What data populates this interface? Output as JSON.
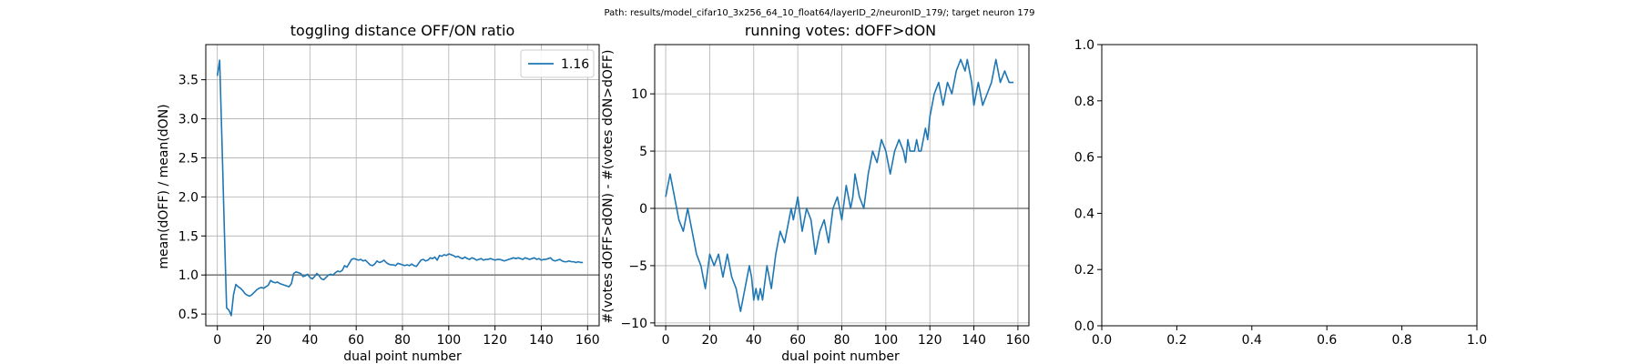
{
  "figure": {
    "suptitle": "Path: results/model_cifar10_3x256_64_10_float64/layerID_2/neuronID_179/; target neuron 179"
  },
  "chart_data": [
    {
      "type": "line",
      "title": "toggling distance OFF/ON ratio",
      "xlabel": "dual point number",
      "ylabel": "mean(dOFF) / mean(dON)",
      "xlim": [
        -5,
        165
      ],
      "ylim": [
        0.35,
        3.95
      ],
      "xticks": [
        0,
        20,
        40,
        60,
        80,
        100,
        120,
        140,
        160
      ],
      "yticks": [
        0.5,
        1.0,
        1.5,
        2.0,
        2.5,
        3.0,
        3.5
      ],
      "xtick_labels": [
        "0",
        "20",
        "40",
        "60",
        "80",
        "100",
        "120",
        "140",
        "160"
      ],
      "ytick_labels": [
        "0.5",
        "1.0",
        "1.5",
        "2.0",
        "2.5",
        "3.0",
        "3.5"
      ],
      "grid": true,
      "hline": 1.0,
      "legend": {
        "position": "top-right",
        "entries": [
          "1.16"
        ]
      },
      "series": [
        {
          "name": "1.16",
          "color": "#1f77b4",
          "x": [
            0,
            1,
            2,
            3,
            4,
            5,
            6,
            7,
            8,
            9,
            10,
            11,
            12,
            13,
            14,
            15,
            16,
            17,
            18,
            19,
            20,
            21,
            22,
            23,
            24,
            25,
            26,
            27,
            28,
            29,
            30,
            31,
            32,
            33,
            34,
            35,
            36,
            37,
            38,
            39,
            40,
            41,
            42,
            43,
            44,
            45,
            46,
            47,
            48,
            49,
            50,
            51,
            52,
            53,
            54,
            55,
            56,
            57,
            58,
            59,
            60,
            61,
            62,
            63,
            64,
            65,
            66,
            67,
            68,
            69,
            70,
            71,
            72,
            73,
            74,
            75,
            76,
            77,
            78,
            79,
            80,
            81,
            82,
            83,
            84,
            85,
            86,
            87,
            88,
            89,
            90,
            91,
            92,
            93,
            94,
            95,
            96,
            97,
            98,
            99,
            100,
            101,
            102,
            103,
            104,
            105,
            106,
            107,
            108,
            109,
            110,
            111,
            112,
            113,
            114,
            115,
            116,
            117,
            118,
            119,
            120,
            121,
            122,
            123,
            124,
            125,
            126,
            127,
            128,
            129,
            130,
            131,
            132,
            133,
            134,
            135,
            136,
            137,
            138,
            139,
            140,
            141,
            142,
            143,
            144,
            145,
            146,
            147,
            148,
            149,
            150,
            151,
            152,
            153,
            154,
            155,
            156,
            157,
            158
          ],
          "y": [
            3.55,
            3.75,
            2.7,
            1.6,
            0.58,
            0.55,
            0.48,
            0.75,
            0.88,
            0.85,
            0.83,
            0.8,
            0.76,
            0.74,
            0.73,
            0.75,
            0.78,
            0.81,
            0.83,
            0.84,
            0.83,
            0.85,
            0.87,
            0.93,
            0.91,
            0.9,
            0.91,
            0.89,
            0.88,
            0.87,
            0.86,
            0.85,
            0.89,
            1.02,
            1.04,
            1.03,
            1.02,
            0.98,
            0.99,
            1.01,
            0.97,
            0.95,
            0.98,
            1.02,
            0.99,
            0.95,
            0.94,
            0.97,
            1.0,
            1.01,
            1.0,
            1.03,
            1.05,
            1.04,
            1.06,
            1.12,
            1.1,
            1.15,
            1.2,
            1.21,
            1.2,
            1.19,
            1.2,
            1.18,
            1.19,
            1.16,
            1.13,
            1.12,
            1.14,
            1.18,
            1.16,
            1.17,
            1.19,
            1.16,
            1.14,
            1.13,
            1.13,
            1.12,
            1.15,
            1.14,
            1.13,
            1.12,
            1.13,
            1.12,
            1.14,
            1.12,
            1.11,
            1.15,
            1.19,
            1.2,
            1.18,
            1.19,
            1.22,
            1.21,
            1.23,
            1.19,
            1.25,
            1.24,
            1.26,
            1.25,
            1.27,
            1.26,
            1.25,
            1.23,
            1.24,
            1.22,
            1.21,
            1.23,
            1.21,
            1.2,
            1.22,
            1.21,
            1.19,
            1.2,
            1.21,
            1.19,
            1.2,
            1.2,
            1.21,
            1.2,
            1.19,
            1.2,
            1.2,
            1.19,
            1.18,
            1.19,
            1.2,
            1.21,
            1.22,
            1.21,
            1.22,
            1.21,
            1.2,
            1.22,
            1.21,
            1.2,
            1.21,
            1.22,
            1.2,
            1.21,
            1.19,
            1.2,
            1.2,
            1.21,
            1.22,
            1.19,
            1.18,
            1.19,
            1.2,
            1.18,
            1.17,
            1.17,
            1.18,
            1.17,
            1.17,
            1.16,
            1.17,
            1.16,
            1.16
          ]
        }
      ]
    },
    {
      "type": "line",
      "title": "running votes: dOFF>dON",
      "xlabel": "dual point number",
      "ylabel": "#(votes dOFF>dON) - #(votes dON>dOFF)",
      "xlim": [
        -5,
        165
      ],
      "ylim": [
        -10.25,
        14.3
      ],
      "xticks": [
        0,
        20,
        40,
        60,
        80,
        100,
        120,
        140,
        160
      ],
      "yticks": [
        -10,
        -5,
        0,
        5,
        10
      ],
      "xtick_labels": [
        "0",
        "20",
        "40",
        "60",
        "80",
        "100",
        "120",
        "140",
        "160"
      ],
      "ytick_labels": [
        "−10",
        "−5",
        "0",
        "5",
        "10"
      ],
      "grid": true,
      "hline": 0,
      "series": [
        {
          "color": "#1f77b4",
          "x": [
            0,
            2,
            4,
            6,
            8,
            10,
            12,
            14,
            16,
            18,
            20,
            22,
            24,
            26,
            28,
            30,
            32,
            34,
            36,
            38,
            39,
            40,
            41,
            42,
            43,
            44,
            46,
            48,
            50,
            52,
            54,
            56,
            57,
            58,
            59,
            60,
            62,
            64,
            66,
            68,
            70,
            72,
            74,
            76,
            78,
            80,
            82,
            83,
            84,
            85,
            86,
            88,
            90,
            92,
            94,
            96,
            98,
            100,
            101,
            102,
            104,
            106,
            108,
            109,
            110,
            111,
            112,
            113,
            114,
            115,
            116,
            117,
            118,
            119,
            120,
            122,
            124,
            126,
            128,
            130,
            132,
            134,
            136,
            137,
            138,
            139,
            140,
            141,
            142,
            144,
            146,
            148,
            150,
            152,
            154,
            156,
            157,
            158
          ],
          "y": [
            1,
            3,
            1,
            -1,
            -2,
            0,
            -2,
            -4,
            -5,
            -7,
            -4,
            -5,
            -4,
            -6,
            -4,
            -6,
            -7,
            -9,
            -7,
            -5,
            -6,
            -8,
            -7,
            -8,
            -7,
            -8,
            -5,
            -7,
            -4,
            -2,
            -3,
            -1,
            0,
            -1,
            0,
            1,
            -2,
            0,
            -1,
            -4,
            -2,
            -1,
            -3,
            0,
            1,
            -1,
            2,
            1,
            0,
            1,
            3,
            1,
            0,
            3,
            5,
            4,
            6,
            5,
            4,
            3,
            5,
            6,
            5,
            4,
            6,
            5,
            5,
            5,
            6,
            5,
            5,
            6,
            7,
            6,
            8,
            10,
            11,
            9,
            11,
            10,
            12,
            13,
            12,
            13,
            12,
            11,
            9,
            10,
            11,
            9,
            10,
            11,
            13,
            11,
            12,
            11,
            11,
            11
          ]
        }
      ]
    },
    {
      "type": "line",
      "title": "",
      "xlabel": "",
      "ylabel": "",
      "xlim": [
        0,
        1
      ],
      "ylim": [
        0,
        1
      ],
      "xticks": [
        0,
        0.2,
        0.4,
        0.6,
        0.8,
        1.0
      ],
      "yticks": [
        0,
        0.2,
        0.4,
        0.6,
        0.8,
        1.0
      ],
      "xtick_labels": [
        "0.0",
        "0.2",
        "0.4",
        "0.6",
        "0.8",
        "1.0"
      ],
      "ytick_labels": [
        "0.0",
        "0.2",
        "0.4",
        "0.6",
        "0.8",
        "1.0"
      ],
      "grid": false,
      "series": []
    }
  ]
}
